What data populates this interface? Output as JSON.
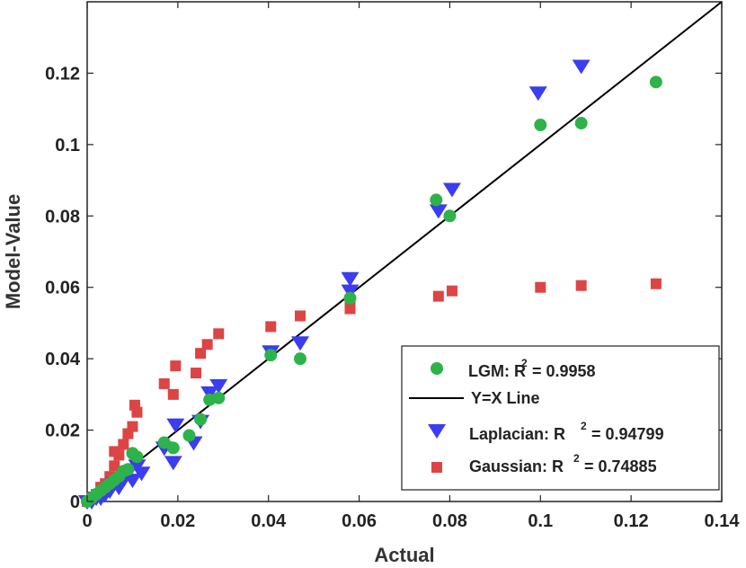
{
  "chart_data": {
    "type": "scatter",
    "title": "",
    "xlabel": "Actual",
    "ylabel": "Model-Value",
    "xlim": [
      0,
      0.14
    ],
    "ylim": [
      0,
      0.14
    ],
    "xticks": [
      "0",
      "0.02",
      "0.04",
      "0.06",
      "0.08",
      "0.1",
      "0.12",
      "0.14"
    ],
    "xtick_values": [
      0,
      0.02,
      0.04,
      0.06,
      0.08,
      0.1,
      0.12,
      0.14
    ],
    "yticks": [
      "0",
      "0.02",
      "0.04",
      "0.06",
      "0.08",
      "0.1",
      "0.12"
    ],
    "ytick_values": [
      0,
      0.02,
      0.04,
      0.06,
      0.08,
      0.1,
      0.12
    ],
    "grid": false,
    "legend_position": "bottom-right",
    "reference_line": {
      "name": "Y=X Line",
      "label": "Y=X Line",
      "color": "#000000",
      "x": [
        0,
        0.14
      ],
      "y": [
        0,
        0.14
      ]
    },
    "series": [
      {
        "name": "LGM",
        "label": "LGM: R",
        "r2": "= 0.9958",
        "marker": "circle",
        "color": "#2db34a",
        "points": [
          [
            0.0,
            0.0
          ],
          [
            0.001,
            0.001
          ],
          [
            0.002,
            0.002
          ],
          [
            0.003,
            0.003
          ],
          [
            0.004,
            0.004
          ],
          [
            0.005,
            0.005
          ],
          [
            0.006,
            0.006
          ],
          [
            0.007,
            0.007
          ],
          [
            0.008,
            0.0085
          ],
          [
            0.009,
            0.009
          ],
          [
            0.01,
            0.0135
          ],
          [
            0.011,
            0.0125
          ],
          [
            0.017,
            0.0165
          ],
          [
            0.019,
            0.015
          ],
          [
            0.0225,
            0.0185
          ],
          [
            0.025,
            0.023
          ],
          [
            0.027,
            0.0285
          ],
          [
            0.029,
            0.029
          ],
          [
            0.0405,
            0.041
          ],
          [
            0.047,
            0.04
          ],
          [
            0.058,
            0.057
          ],
          [
            0.077,
            0.0845
          ],
          [
            0.08,
            0.08
          ],
          [
            0.1,
            0.1055
          ],
          [
            0.109,
            0.106
          ],
          [
            0.1255,
            0.1175
          ]
        ]
      },
      {
        "name": "Laplacian",
        "label": "Laplacian: R",
        "r2": "= 0.94799",
        "marker": "triangle-down",
        "color": "#3c3cf0",
        "points": [
          [
            0.0,
            0.0
          ],
          [
            0.001,
            0.0
          ],
          [
            0.002,
            0.001
          ],
          [
            0.003,
            0.001
          ],
          [
            0.004,
            0.002
          ],
          [
            0.005,
            0.003
          ],
          [
            0.006,
            0.005
          ],
          [
            0.007,
            0.004
          ],
          [
            0.008,
            0.006
          ],
          [
            0.009,
            0.008
          ],
          [
            0.01,
            0.006
          ],
          [
            0.011,
            0.01
          ],
          [
            0.012,
            0.008
          ],
          [
            0.017,
            0.015
          ],
          [
            0.019,
            0.011
          ],
          [
            0.0195,
            0.0215
          ],
          [
            0.0235,
            0.0165
          ],
          [
            0.025,
            0.0225
          ],
          [
            0.027,
            0.0305
          ],
          [
            0.029,
            0.0325
          ],
          [
            0.0405,
            0.042
          ],
          [
            0.047,
            0.0445
          ],
          [
            0.058,
            0.0625
          ],
          [
            0.058,
            0.059
          ],
          [
            0.0775,
            0.0815
          ],
          [
            0.0805,
            0.0875
          ],
          [
            0.0995,
            0.1145
          ],
          [
            0.109,
            0.122
          ]
        ]
      },
      {
        "name": "Gaussian",
        "label": "Gaussian: R",
        "r2": "= 0.74885",
        "marker": "square",
        "color": "#dd4444",
        "points": [
          [
            0.0,
            0.0
          ],
          [
            0.001,
            0.001
          ],
          [
            0.002,
            0.002
          ],
          [
            0.003,
            0.004
          ],
          [
            0.004,
            0.005
          ],
          [
            0.005,
            0.007
          ],
          [
            0.006,
            0.01
          ],
          [
            0.006,
            0.014
          ],
          [
            0.007,
            0.013
          ],
          [
            0.008,
            0.016
          ],
          [
            0.009,
            0.019
          ],
          [
            0.01,
            0.021
          ],
          [
            0.011,
            0.025
          ],
          [
            0.0105,
            0.027
          ],
          [
            0.017,
            0.033
          ],
          [
            0.019,
            0.03
          ],
          [
            0.0195,
            0.038
          ],
          [
            0.024,
            0.036
          ],
          [
            0.025,
            0.0415
          ],
          [
            0.0265,
            0.044
          ],
          [
            0.029,
            0.047
          ],
          [
            0.0405,
            0.049
          ],
          [
            0.047,
            0.052
          ],
          [
            0.058,
            0.054
          ],
          [
            0.058,
            0.056
          ],
          [
            0.0775,
            0.0575
          ],
          [
            0.0805,
            0.059
          ],
          [
            0.1,
            0.06
          ],
          [
            0.109,
            0.0605
          ],
          [
            0.1255,
            0.061
          ]
        ]
      }
    ]
  }
}
